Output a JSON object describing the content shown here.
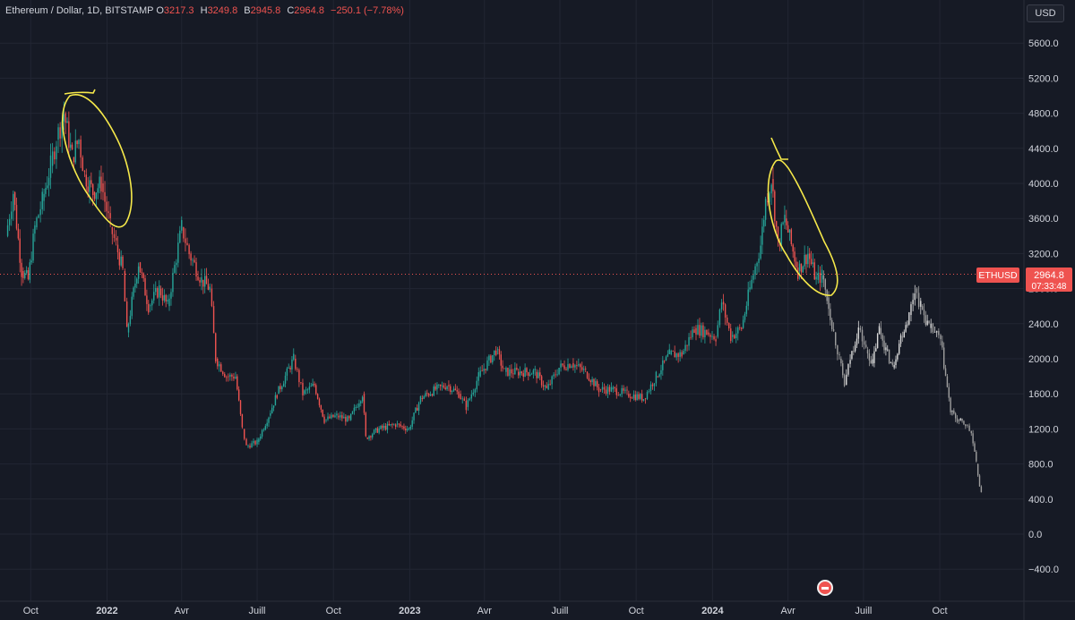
{
  "legend": {
    "symbol": "Ethereum / Dollar, 1D, BITSTAMP",
    "o_label": "O",
    "o_value": "3217.3",
    "h_label": "H",
    "h_value": "3249.8",
    "b_label": "B",
    "b_value": "2945.8",
    "c_label": "C",
    "c_value": "2964.8",
    "change": "−250.1 (−7.78%)"
  },
  "currency": "USD",
  "price_tag": {
    "name": "ETHUSD",
    "price": "2964.8",
    "countdown": "07:33:48",
    "value": 2964.8
  },
  "colors": {
    "background": "#161a25",
    "grid": "#222633",
    "up": "#26a69a",
    "down": "#ef5350",
    "projection": "#d9d9d9",
    "annotation": "#f6e94a",
    "axis_text": "#d1d4dc"
  },
  "chart_data": {
    "type": "line",
    "ylim": [
      -500,
      5900
    ],
    "y_ticks": [
      "5600.0",
      "5200.0",
      "4800.0",
      "4400.0",
      "4000.0",
      "3600.0",
      "3200.0",
      "2800.0",
      "2400.0",
      "2000.0",
      "1600.0",
      "1200.0",
      "800.0",
      "400.0",
      "0.0",
      "−400.0"
    ],
    "y_tick_values": [
      5600,
      5200,
      4800,
      4400,
      4000,
      3600,
      3200,
      2800,
      2400,
      2000,
      1600,
      1200,
      800,
      400,
      0,
      -400
    ],
    "x_ticks": [
      "Oct",
      "2022",
      "Avr",
      "Juill",
      "Oct",
      "2023",
      "Avr",
      "Juill",
      "Oct",
      "2024",
      "Avr",
      "Juill",
      "Oct"
    ],
    "x_tick_bold": [
      false,
      true,
      false,
      false,
      false,
      true,
      false,
      false,
      false,
      true,
      false,
      false,
      false
    ],
    "series": [
      {
        "role": "price",
        "points": [
          [
            "2021-09-01",
            3400
          ],
          [
            "2021-09-10",
            3900
          ],
          [
            "2021-09-20",
            3000
          ],
          [
            "2021-09-28",
            2900
          ],
          [
            "2021-10-06",
            3500
          ],
          [
            "2021-10-15",
            3800
          ],
          [
            "2021-10-25",
            4200
          ],
          [
            "2021-11-01",
            4500
          ],
          [
            "2021-11-10",
            4800
          ],
          [
            "2021-11-20",
            4300
          ],
          [
            "2021-11-28",
            4500
          ],
          [
            "2021-12-05",
            4100
          ],
          [
            "2021-12-15",
            3900
          ],
          [
            "2021-12-25",
            4000
          ],
          [
            "2022-01-05",
            3500
          ],
          [
            "2022-01-12",
            3300
          ],
          [
            "2022-01-20",
            3000
          ],
          [
            "2022-01-25",
            2300
          ],
          [
            "2022-02-08",
            3100
          ],
          [
            "2022-02-20",
            2600
          ],
          [
            "2022-03-05",
            2800
          ],
          [
            "2022-03-15",
            2600
          ],
          [
            "2022-04-01",
            3500
          ],
          [
            "2022-04-10",
            3200
          ],
          [
            "2022-04-25",
            2900
          ],
          [
            "2022-05-05",
            2800
          ],
          [
            "2022-05-12",
            2000
          ],
          [
            "2022-05-25",
            1800
          ],
          [
            "2022-06-05",
            1800
          ],
          [
            "2022-06-13",
            1200
          ],
          [
            "2022-06-18",
            1000
          ],
          [
            "2022-07-01",
            1050
          ],
          [
            "2022-07-15",
            1350
          ],
          [
            "2022-07-25",
            1600
          ],
          [
            "2022-08-14",
            2000
          ],
          [
            "2022-08-25",
            1600
          ],
          [
            "2022-09-08",
            1700
          ],
          [
            "2022-09-20",
            1300
          ],
          [
            "2022-10-05",
            1350
          ],
          [
            "2022-10-20",
            1300
          ],
          [
            "2022-11-05",
            1600
          ],
          [
            "2022-11-09",
            1100
          ],
          [
            "2022-11-25",
            1200
          ],
          [
            "2022-12-15",
            1250
          ],
          [
            "2022-12-31",
            1200
          ],
          [
            "2023-01-14",
            1550
          ],
          [
            "2023-02-01",
            1650
          ],
          [
            "2023-02-15",
            1700
          ],
          [
            "2023-03-01",
            1600
          ],
          [
            "2023-03-10",
            1450
          ],
          [
            "2023-03-25",
            1800
          ],
          [
            "2023-04-15",
            2100
          ],
          [
            "2023-04-25",
            1850
          ],
          [
            "2023-05-10",
            1850
          ],
          [
            "2023-06-01",
            1850
          ],
          [
            "2023-06-15",
            1650
          ],
          [
            "2023-06-30",
            1900
          ],
          [
            "2023-07-15",
            1950
          ],
          [
            "2023-08-01",
            1850
          ],
          [
            "2023-08-17",
            1650
          ],
          [
            "2023-09-01",
            1650
          ],
          [
            "2023-09-20",
            1600
          ],
          [
            "2023-10-10",
            1550
          ],
          [
            "2023-10-25",
            1800
          ],
          [
            "2023-11-10",
            2050
          ],
          [
            "2023-11-25",
            2050
          ],
          [
            "2023-12-10",
            2350
          ],
          [
            "2023-12-25",
            2300
          ],
          [
            "2024-01-05",
            2250
          ],
          [
            "2024-01-12",
            2650
          ],
          [
            "2024-01-23",
            2250
          ],
          [
            "2024-02-05",
            2350
          ],
          [
            "2024-02-15",
            2800
          ],
          [
            "2024-02-28",
            3300
          ],
          [
            "2024-03-05",
            3800
          ],
          [
            "2024-03-12",
            4050
          ],
          [
            "2024-03-20",
            3300
          ],
          [
            "2024-03-28",
            3600
          ],
          [
            "2024-04-05",
            3300
          ],
          [
            "2024-04-13",
            3000
          ],
          [
            "2024-04-25",
            3200
          ],
          [
            "2024-05-05",
            2900
          ],
          [
            "2024-05-12",
            2950
          ]
        ]
      },
      {
        "role": "projection",
        "points": [
          [
            "2024-05-12",
            2950
          ],
          [
            "2024-05-18",
            2700
          ],
          [
            "2024-05-26",
            2300
          ],
          [
            "2024-06-02",
            2000
          ],
          [
            "2024-06-08",
            1700
          ],
          [
            "2024-06-15",
            2000
          ],
          [
            "2024-06-25",
            2350
          ],
          [
            "2024-07-04",
            2100
          ],
          [
            "2024-07-12",
            1950
          ],
          [
            "2024-07-20",
            2350
          ],
          [
            "2024-07-28",
            2100
          ],
          [
            "2024-08-05",
            1900
          ],
          [
            "2024-08-15",
            2250
          ],
          [
            "2024-08-25",
            2500
          ],
          [
            "2024-09-01",
            2800
          ],
          [
            "2024-09-08",
            2600
          ],
          [
            "2024-09-18",
            2350
          ],
          [
            "2024-09-25",
            2300
          ],
          [
            "2024-10-02",
            2200
          ],
          [
            "2024-10-08",
            1800
          ],
          [
            "2024-10-14",
            1400
          ],
          [
            "2024-10-22",
            1300
          ],
          [
            "2024-11-01",
            1250
          ],
          [
            "2024-11-08",
            1150
          ],
          [
            "2024-11-14",
            800
          ],
          [
            "2024-11-20",
            450
          ]
        ]
      }
    ]
  }
}
